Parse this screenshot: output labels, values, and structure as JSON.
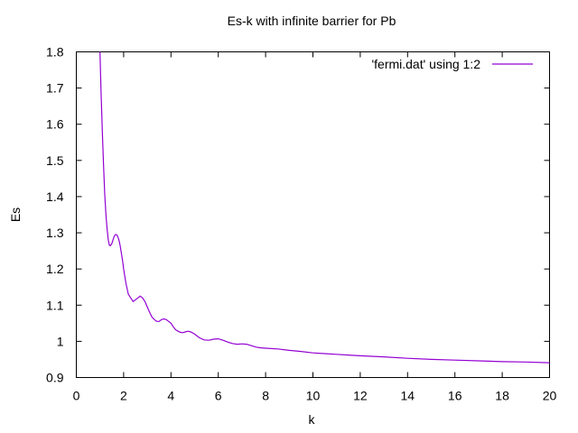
{
  "chart_data": {
    "type": "line",
    "title": "Es-k with infinite barrier for Pb",
    "xlabel": "k",
    "ylabel": "Es",
    "xlim": [
      0,
      20
    ],
    "ylim": [
      0.9,
      1.8
    ],
    "xticks": [
      "0",
      "2",
      "4",
      "6",
      "8",
      "10",
      "12",
      "14",
      "16",
      "18",
      "20"
    ],
    "yticks": [
      "0.9",
      "1",
      "1.1",
      "1.2",
      "1.3",
      "1.4",
      "1.5",
      "1.6",
      "1.7",
      "1.8"
    ],
    "grid": false,
    "legend_position": "top-right",
    "series": [
      {
        "name": "'fermi.dat' using 1:2",
        "color": "#9400d3",
        "x": [
          1.0,
          1.05,
          1.1,
          1.15,
          1.2,
          1.25,
          1.3,
          1.35,
          1.4,
          1.45,
          1.5,
          1.55,
          1.6,
          1.65,
          1.7,
          1.75,
          1.8,
          1.85,
          1.9,
          1.95,
          2.0,
          2.05,
          2.1,
          2.2,
          2.3,
          2.4,
          2.5,
          2.6,
          2.7,
          2.8,
          2.9,
          3.0,
          3.1,
          3.2,
          3.3,
          3.4,
          3.5,
          3.6,
          3.7,
          3.8,
          3.9,
          4.0,
          4.1,
          4.2,
          4.3,
          4.4,
          4.5,
          4.6,
          4.7,
          4.8,
          4.9,
          5.0,
          5.2,
          5.4,
          5.6,
          5.8,
          6.0,
          6.2,
          6.4,
          6.6,
          6.8,
          7.0,
          7.2,
          7.4,
          7.6,
          7.8,
          8.0,
          8.5,
          9.0,
          9.5,
          10.0,
          10.5,
          11.0,
          11.5,
          12.0,
          13.0,
          14.0,
          15.0,
          16.0,
          17.0,
          18.0,
          19.0,
          20.0
        ],
        "y": [
          1.8,
          1.68,
          1.58,
          1.49,
          1.41,
          1.35,
          1.31,
          1.28,
          1.265,
          1.265,
          1.27,
          1.28,
          1.29,
          1.295,
          1.295,
          1.29,
          1.28,
          1.265,
          1.245,
          1.225,
          1.2,
          1.18,
          1.16,
          1.13,
          1.12,
          1.11,
          1.115,
          1.12,
          1.125,
          1.12,
          1.11,
          1.095,
          1.08,
          1.067,
          1.06,
          1.055,
          1.055,
          1.06,
          1.062,
          1.06,
          1.055,
          1.05,
          1.04,
          1.032,
          1.028,
          1.025,
          1.024,
          1.026,
          1.028,
          1.027,
          1.024,
          1.02,
          1.01,
          1.004,
          1.003,
          1.006,
          1.007,
          1.003,
          0.998,
          0.994,
          0.992,
          0.993,
          0.992,
          0.988,
          0.984,
          0.982,
          0.981,
          0.979,
          0.975,
          0.972,
          0.968,
          0.966,
          0.964,
          0.962,
          0.96,
          0.957,
          0.953,
          0.95,
          0.948,
          0.946,
          0.944,
          0.943,
          0.941
        ]
      }
    ]
  }
}
